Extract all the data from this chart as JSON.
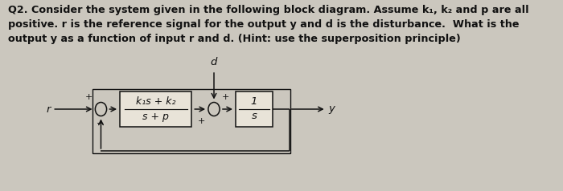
{
  "bg_color": "#cbc7be",
  "text_color": "#111111",
  "title_lines": [
    "Q2. Consider the system given in the following block diagram. Assume k₁, k₂ and p are all",
    "positive. r is the reference signal for the output y and d is the disturbance.  What is the",
    "output y as a function of input r and d. (Hint: use the superposition principle)"
  ],
  "block1_num": "k₁s + k₂",
  "block1_den": "s + p",
  "block2_num": "1",
  "block2_den": "s",
  "label_r": "r",
  "label_d": "d",
  "label_y": "y",
  "sign_plus": "+",
  "sign_minus": "−",
  "box_color": "#e8e3d8",
  "line_color": "#111111",
  "title_fontsize": 9.2,
  "diagram_fontsize": 9.5,
  "small_fontsize": 8.0
}
